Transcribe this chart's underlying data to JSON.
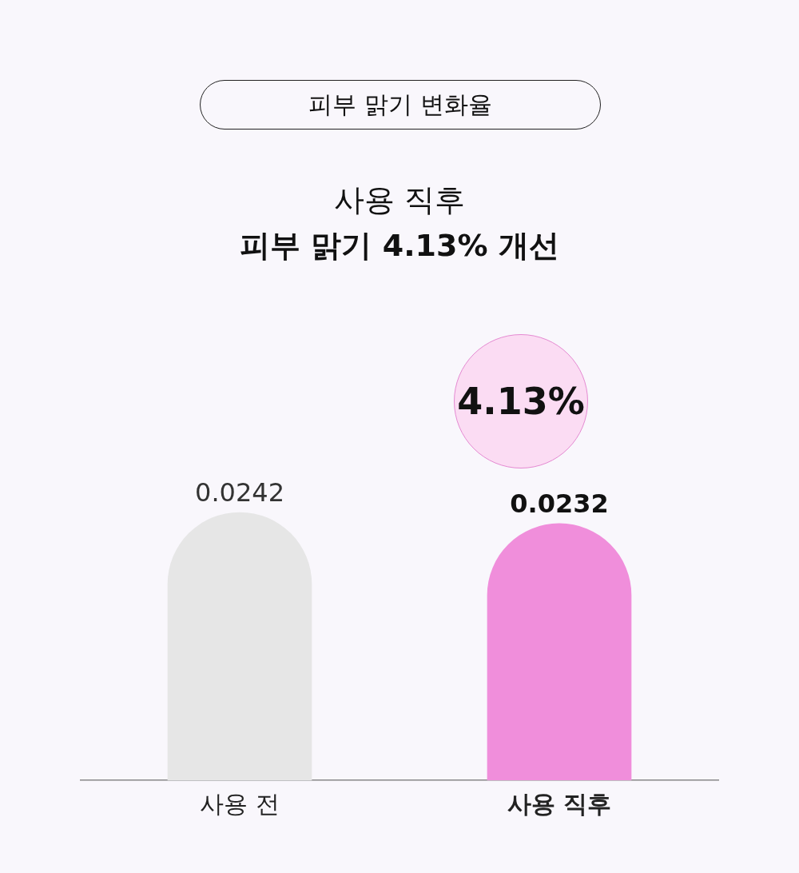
{
  "chart_data": {
    "type": "bar",
    "title": "피부 맑기 변화율",
    "subtitle": "사용 직후",
    "annotations": [
      "피부 맑기 4.13% 개선",
      "4.13%"
    ],
    "categories": [
      "사용 전",
      "사용 직후"
    ],
    "values": [
      0.0242,
      0.0232
    ],
    "colors": [
      "#e6e6e6",
      "#f08edb"
    ],
    "data_labels": true,
    "grid": false,
    "legend": false
  }
}
